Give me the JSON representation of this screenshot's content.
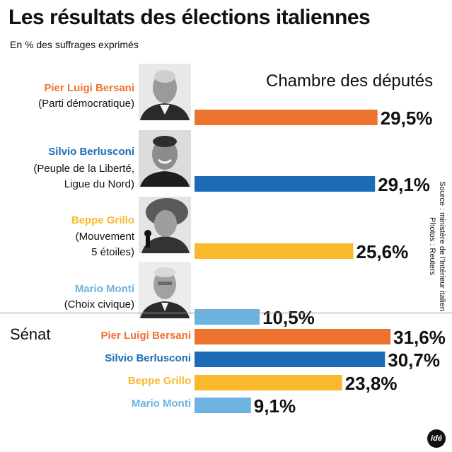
{
  "title": "Les résultats des élections italiennes",
  "subtitle": "En % des suffrages exprimés",
  "chamber": {
    "title": "Chambre des députés",
    "candidates": [
      {
        "name": "Pier Luigi Bersani",
        "party_lines": [
          "(Parti démocratique)"
        ],
        "color": "#ee7330",
        "value": 29.5,
        "label": "29,5%"
      },
      {
        "name": "Silvio Berlusconi",
        "party_lines": [
          "(Peuple de la Liberté,",
          "Ligue du Nord)"
        ],
        "color": "#1b6cb4",
        "value": 29.1,
        "label": "29,1%"
      },
      {
        "name": "Beppe Grillo",
        "party_lines": [
          "(Mouvement",
          "5 étoiles)"
        ],
        "color": "#f9b92d",
        "value": 25.6,
        "label": "25,6%"
      },
      {
        "name": "Mario Monti",
        "party_lines": [
          "(Choix civique)"
        ],
        "color": "#6db3e1",
        "value": 10.5,
        "label": "10,5%"
      }
    ]
  },
  "senate": {
    "title": "Sénat",
    "candidates": [
      {
        "name": "Pier Luigi Bersani",
        "color": "#ee7330",
        "value": 31.6,
        "label": "31,6%"
      },
      {
        "name": "Silvio Berlusconi",
        "color": "#1b6cb4",
        "value": 30.7,
        "label": "30,7%"
      },
      {
        "name": "Beppe Grillo",
        "color": "#f9b92d",
        "value": 23.8,
        "label": "23,8%"
      },
      {
        "name": "Mario Monti",
        "color": "#6db3e1",
        "value": 9.1,
        "label": "9,1%"
      }
    ]
  },
  "source": "Source : ministère de l'Intérieur italien",
  "photos_credit": "Photos : Reuters",
  "logo": "idé",
  "chart_data": [
    {
      "type": "bar",
      "title": "Chambre des députés",
      "categories": [
        "Pier Luigi Bersani",
        "Silvio Berlusconi",
        "Beppe Grillo",
        "Mario Monti"
      ],
      "values": [
        29.5,
        29.1,
        25.6,
        10.5
      ],
      "ylabel": "En % des suffrages exprimés"
    },
    {
      "type": "bar",
      "title": "Sénat",
      "categories": [
        "Pier Luigi Bersani",
        "Silvio Berlusconi",
        "Beppe Grillo",
        "Mario Monti"
      ],
      "values": [
        31.6,
        30.7,
        23.8,
        9.1
      ],
      "ylabel": "En % des suffrages exprimés"
    }
  ]
}
